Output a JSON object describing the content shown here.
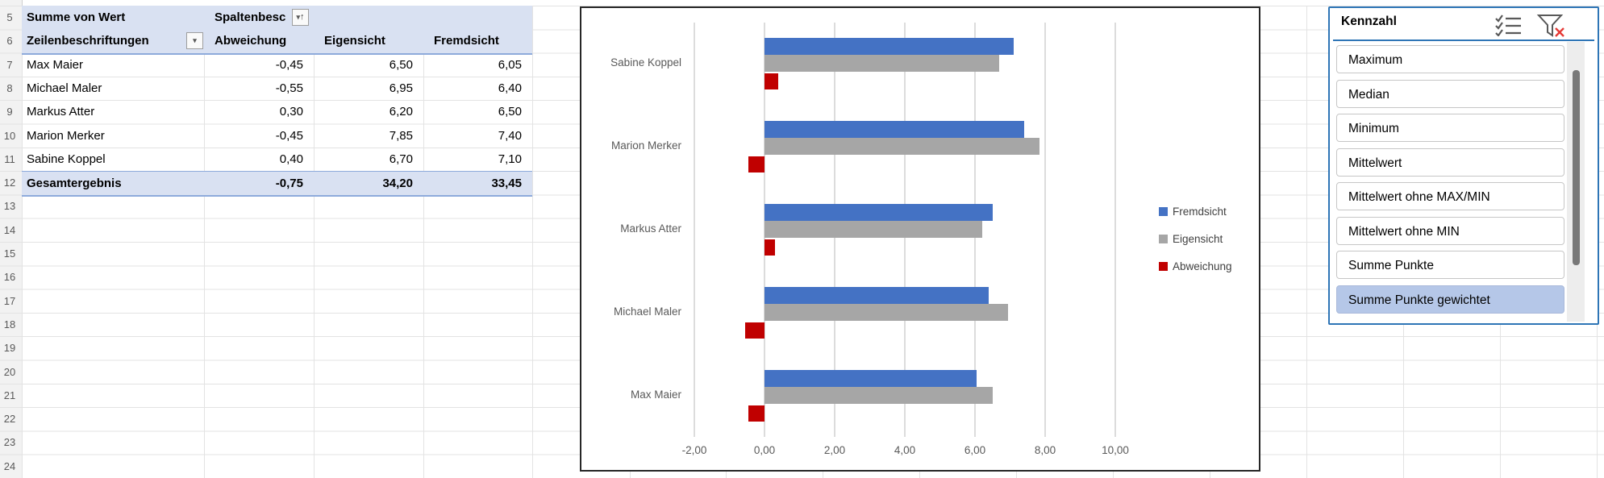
{
  "spreadsheet": {
    "row_numbers": [
      "5",
      "6",
      "7",
      "8",
      "9",
      "10",
      "11",
      "12",
      "13",
      "14",
      "15",
      "16",
      "17",
      "18",
      "19",
      "20",
      "21",
      "22",
      "23",
      "24"
    ]
  },
  "pivot_table": {
    "title_cell": "Summe von Wert",
    "column_header_cell": "Spaltenbesc",
    "column_header_sort_icon": "filter-sort-ascending-icon",
    "row_header_cell": "Zeilenbeschriftungen",
    "row_header_dropdown_icon": "dropdown-arrow-icon",
    "value_headers": [
      "Abweichung",
      "Eigensicht",
      "Fremdsicht"
    ],
    "rows": [
      {
        "label": "Max Maier",
        "values": [
          "-0,45",
          "6,50",
          "6,05"
        ]
      },
      {
        "label": "Michael Maler",
        "values": [
          "-0,55",
          "6,95",
          "6,40"
        ]
      },
      {
        "label": "Markus Atter",
        "values": [
          "0,30",
          "6,20",
          "6,50"
        ]
      },
      {
        "label": "Marion Merker",
        "values": [
          "-0,45",
          "7,85",
          "7,40"
        ]
      },
      {
        "label": "Sabine Koppel",
        "values": [
          "0,40",
          "6,70",
          "7,10"
        ]
      }
    ],
    "total_row": {
      "label": "Gesamtergebnis",
      "values": [
        "-0,75",
        "34,20",
        "33,45"
      ]
    },
    "fill_color": "#d9e1f2",
    "border_color": "#8eaadb"
  },
  "chart_data": {
    "type": "bar",
    "orientation": "horizontal",
    "category_order": "top-to-bottom",
    "categories": [
      "Sabine Koppel",
      "Marion Merker",
      "Markus Atter",
      "Michael Maler",
      "Max Maier"
    ],
    "series": [
      {
        "name": "Fremdsicht",
        "color": "#4472c4",
        "values": [
          7.1,
          7.4,
          6.5,
          6.4,
          6.05
        ]
      },
      {
        "name": "Eigensicht",
        "color": "#a6a6a6",
        "values": [
          6.7,
          7.85,
          6.2,
          6.95,
          6.5
        ]
      },
      {
        "name": "Abweichung",
        "color": "#c00000",
        "values": [
          0.4,
          -0.45,
          0.3,
          -0.55,
          -0.45
        ]
      }
    ],
    "xlim": [
      -2,
      10
    ],
    "x_tick_labels": [
      "-2,00",
      "0,00",
      "2,00",
      "4,00",
      "6,00",
      "8,00",
      "10,00"
    ],
    "x_tick_values": [
      -2,
      0,
      2,
      4,
      6,
      8,
      10
    ],
    "grid": true,
    "legend_position": "right",
    "title": ""
  },
  "slicer": {
    "title": "Kennzahl",
    "multiselect_icon": "multi-select-icon",
    "clear_filter_icon": "clear-filter-icon",
    "items": [
      {
        "label": "Maximum",
        "selected": false
      },
      {
        "label": "Median",
        "selected": false
      },
      {
        "label": "Minimum",
        "selected": false
      },
      {
        "label": "Mittelwert",
        "selected": false
      },
      {
        "label": "Mittelwert ohne MAX/MIN",
        "selected": false
      },
      {
        "label": "Mittelwert ohne MIN",
        "selected": false
      },
      {
        "label": "Summe Punkte",
        "selected": false
      },
      {
        "label": "Summe Punkte gewichtet",
        "selected": true
      }
    ],
    "selected_fill": "#b5c7e8",
    "border_color": "#2e75b6"
  }
}
